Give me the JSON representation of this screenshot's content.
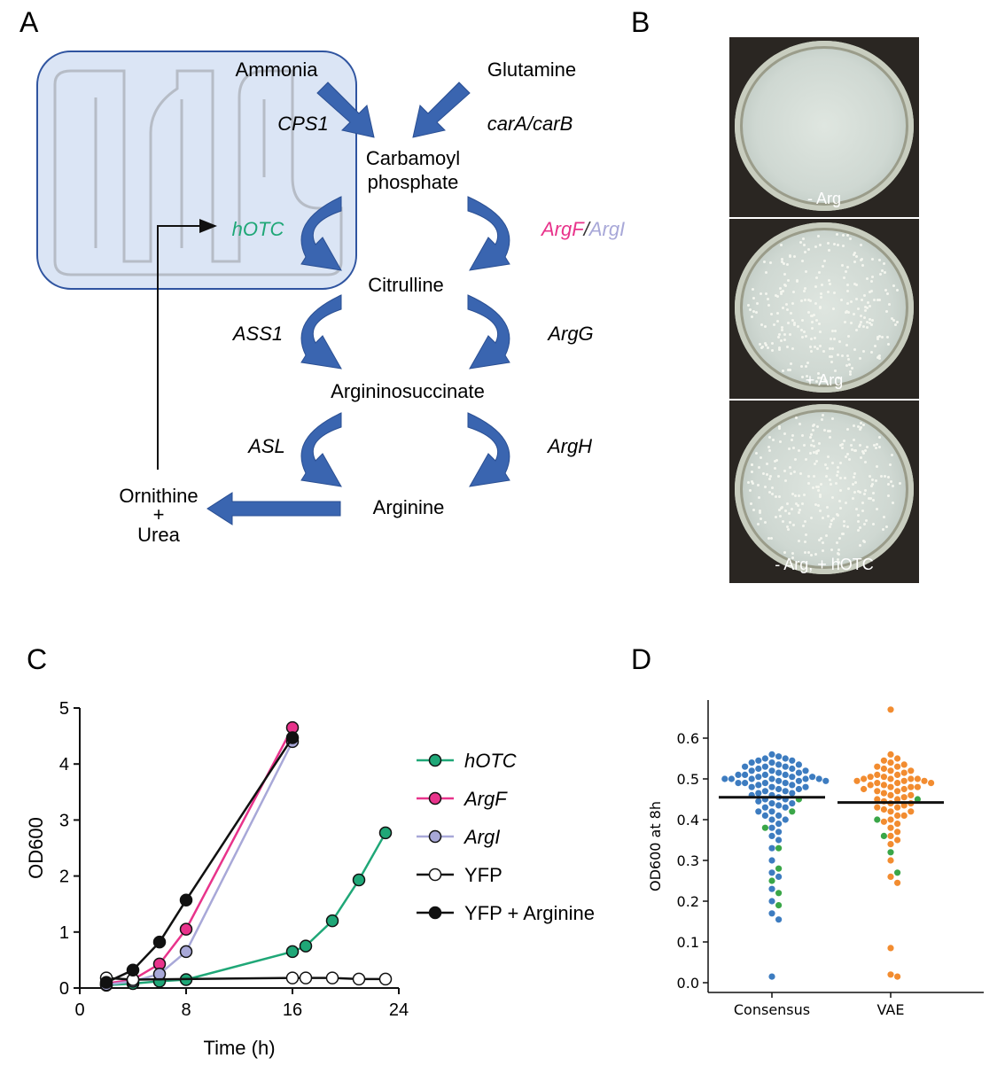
{
  "panels": {
    "a": "A",
    "b": "B",
    "c": "C",
    "d": "D"
  },
  "pathway": {
    "ammonia": "Ammonia",
    "glutamine": "Glutamine",
    "cps1": "CPS1",
    "carab": "carA/carB",
    "carbamoyl1": "Carbamoyl",
    "carbamoyl2": "phosphate",
    "hotc": "hOTC",
    "argf": "ArgF",
    "slash": "/",
    "argi": "ArgI",
    "citrulline": "Citrulline",
    "ass1": "ASS1",
    "argg": "ArgG",
    "argininosuccinate": "Argininosuccinate",
    "asl": "ASL",
    "argh": "ArgH",
    "arginine": "Arginine",
    "ornithine": "Ornithine",
    "plus": "+",
    "urea": "Urea"
  },
  "plates": [
    {
      "caption": "- Arg",
      "colonies": 0
    },
    {
      "caption": "+ Arg",
      "colonies": 1
    },
    {
      "caption": "- Arg, + hOTC",
      "colonies": 1
    }
  ],
  "colors": {
    "hotc": "#1fa777",
    "argf": "#e8338b",
    "argi": "#a8a8d8",
    "yfp": "#111111",
    "arrow": "#3a65b0",
    "mito_fill": "#dbe5f5",
    "consensus": "#3d7cc0",
    "vae": "#f28c30",
    "green_dot": "#3aa648"
  },
  "chart_data": [
    {
      "type": "line",
      "xlabel": "Time (h)",
      "ylabel": "OD600",
      "xlim": [
        0,
        24
      ],
      "ylim": [
        0,
        5
      ],
      "xticks": [
        0,
        8,
        16,
        24
      ],
      "yticks": [
        0,
        1,
        2,
        3,
        4,
        5
      ],
      "series": [
        {
          "name": "hOTC",
          "color": "#1fa777",
          "filled": true,
          "x": [
            2,
            4,
            6,
            8,
            16,
            17,
            19,
            21,
            23
          ],
          "y": [
            0.05,
            0.08,
            0.12,
            0.15,
            0.65,
            0.75,
            1.2,
            1.93,
            2.77
          ]
        },
        {
          "name": "ArgF",
          "color": "#e8338b",
          "filled": true,
          "x": [
            2,
            4,
            6,
            8,
            16
          ],
          "y": [
            0.08,
            0.15,
            0.43,
            1.05,
            4.65
          ]
        },
        {
          "name": "ArgI",
          "color": "#a8a8d8",
          "filled": true,
          "x": [
            2,
            4,
            6,
            8,
            16
          ],
          "y": [
            0.06,
            0.12,
            0.25,
            0.65,
            4.4
          ]
        },
        {
          "name": "YFP",
          "color": "#111111",
          "filled": false,
          "x": [
            2,
            4,
            16,
            17,
            19,
            21,
            23
          ],
          "y": [
            0.18,
            0.15,
            0.18,
            0.18,
            0.18,
            0.16,
            0.16
          ]
        },
        {
          "name": "YFP + Arginine",
          "color": "#111111",
          "filled": true,
          "x": [
            2,
            4,
            6,
            8,
            16
          ],
          "y": [
            0.1,
            0.32,
            0.82,
            1.57,
            4.47
          ]
        }
      ],
      "legend_italic": [
        true,
        true,
        true,
        false,
        false
      ]
    },
    {
      "type": "scatter",
      "ylabel": "OD600 at 8h",
      "categories": [
        "Consensus",
        "VAE"
      ],
      "ylim": [
        0,
        0.68
      ],
      "yticks": [
        0.0,
        0.1,
        0.2,
        0.3,
        0.4,
        0.5,
        0.6
      ],
      "medians": [
        0.455,
        0.442
      ],
      "groups": [
        {
          "name": "Consensus",
          "color": "#3d7cc0",
          "values": [
            0.56,
            0.555,
            0.55,
            0.55,
            0.545,
            0.545,
            0.54,
            0.54,
            0.535,
            0.535,
            0.53,
            0.53,
            0.53,
            0.525,
            0.525,
            0.52,
            0.52,
            0.52,
            0.515,
            0.515,
            0.51,
            0.51,
            0.51,
            0.51,
            0.505,
            0.505,
            0.505,
            0.5,
            0.5,
            0.5,
            0.5,
            0.5,
            0.5,
            0.495,
            0.495,
            0.495,
            0.49,
            0.49,
            0.49,
            0.49,
            0.485,
            0.485,
            0.48,
            0.48,
            0.48,
            0.475,
            0.475,
            0.47,
            0.47,
            0.465,
            0.465,
            0.46,
            0.46,
            0.455,
            0.45,
            0.45,
            0.445,
            0.44,
            0.44,
            0.435,
            0.43,
            0.43,
            0.42,
            0.42,
            0.41,
            0.41,
            0.4,
            0.4,
            0.39,
            0.38,
            0.37,
            0.36,
            0.35,
            0.33,
            0.3,
            0.27,
            0.26,
            0.23,
            0.2,
            0.17,
            0.155,
            0.015
          ],
          "green": [
            0.45,
            0.42,
            0.38,
            0.33,
            0.28,
            0.25,
            0.22,
            0.19
          ]
        },
        {
          "name": "VAE",
          "color": "#f28c30",
          "values": [
            0.67,
            0.56,
            0.55,
            0.545,
            0.54,
            0.535,
            0.53,
            0.53,
            0.525,
            0.52,
            0.52,
            0.515,
            0.51,
            0.51,
            0.505,
            0.505,
            0.5,
            0.5,
            0.5,
            0.5,
            0.495,
            0.495,
            0.495,
            0.49,
            0.49,
            0.49,
            0.485,
            0.485,
            0.48,
            0.48,
            0.48,
            0.475,
            0.475,
            0.47,
            0.47,
            0.465,
            0.46,
            0.46,
            0.455,
            0.45,
            0.45,
            0.445,
            0.44,
            0.44,
            0.435,
            0.43,
            0.43,
            0.425,
            0.42,
            0.42,
            0.41,
            0.41,
            0.4,
            0.395,
            0.39,
            0.38,
            0.37,
            0.36,
            0.35,
            0.34,
            0.3,
            0.26,
            0.245,
            0.085,
            0.02,
            0.015
          ],
          "green": [
            0.45,
            0.4,
            0.36,
            0.32,
            0.27
          ]
        }
      ]
    }
  ]
}
